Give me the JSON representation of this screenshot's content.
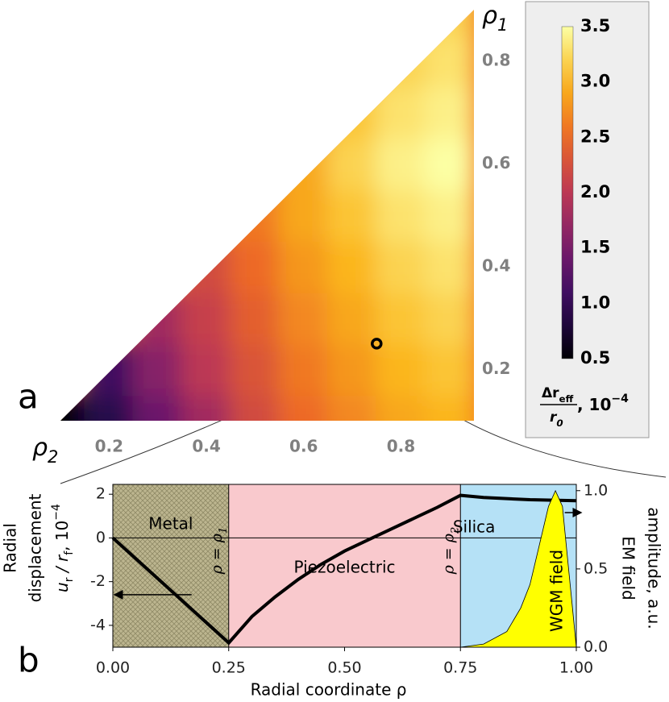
{
  "chart_data": [
    {
      "type": "contour",
      "panel_label": "a",
      "xlabel": {
        "text": "ρ",
        "sub": "2"
      },
      "ylabel": {
        "text": "ρ",
        "sub": "1"
      },
      "xlim": [
        0.1,
        0.95
      ],
      "ylim": [
        0.1,
        0.9
      ],
      "xticks": [
        0.2,
        0.4,
        0.6,
        0.8
      ],
      "yticks": [
        0.2,
        0.4,
        0.6,
        0.8
      ],
      "grid_x": [
        0.1,
        0.2,
        0.3,
        0.4,
        0.5,
        0.6,
        0.7,
        0.8,
        0.9
      ],
      "grid_y": [
        0.1,
        0.2,
        0.3,
        0.4,
        0.5,
        0.6,
        0.7,
        0.8,
        0.9
      ],
      "z": [
        [
          0.5,
          0.9,
          1.4,
          1.8,
          2.2,
          2.5,
          2.7,
          2.9,
          3.0
        ],
        [
          null,
          1.1,
          1.6,
          2.0,
          2.3,
          2.6,
          2.8,
          3.0,
          3.1
        ],
        [
          null,
          null,
          1.8,
          2.1,
          2.4,
          2.7,
          2.9,
          3.1,
          3.2
        ],
        [
          null,
          null,
          null,
          2.2,
          2.5,
          2.8,
          3.0,
          3.2,
          3.3
        ],
        [
          null,
          null,
          null,
          null,
          2.6,
          2.9,
          3.1,
          3.3,
          3.4
        ],
        [
          null,
          null,
          null,
          null,
          null,
          2.9,
          3.2,
          3.4,
          3.5
        ],
        [
          null,
          null,
          null,
          null,
          null,
          null,
          3.1,
          3.3,
          3.4
        ],
        [
          null,
          null,
          null,
          null,
          null,
          null,
          null,
          3.2,
          3.3
        ],
        [
          null,
          null,
          null,
          null,
          null,
          null,
          null,
          null,
          3.2
        ]
      ],
      "colormap": "inferno",
      "clim": [
        0.5,
        3.5
      ],
      "cticks": [
        0.5,
        {
          "value": 1,
          "label": "1.0"
        },
        1.5,
        {
          "value": 2,
          "label": "2.0"
        },
        2.5,
        {
          "value": 3,
          "label": "3.0"
        },
        3.5
      ],
      "colorbar_label": {
        "numerator": "Δr",
        "numerator_sub": "eff",
        "denominator": "r",
        "denominator_sub": "0",
        "suffix": ", 10",
        "suffix_sup": "−4"
      },
      "marker": {
        "x": 0.75,
        "y": 0.25
      }
    },
    {
      "type": "line",
      "panel_label": "b",
      "xlabel": "Radial coordinate ρ",
      "ylabel": {
        "line1": "Radial",
        "line2": "displacement",
        "u": "u",
        "u_sub": "r",
        "mid": " / r",
        "r_sub": "f",
        "suffix": ", 10",
        "suffix_sup": "−4"
      },
      "y2label": [
        "EM field",
        "amplitude, a.u."
      ],
      "xlim": [
        0,
        1
      ],
      "ylim": [
        -5,
        2.45
      ],
      "y2lim": [
        0,
        1.04
      ],
      "xticks": [
        {
          "value": 0,
          "label": "0.00"
        },
        {
          "value": 0.25,
          "label": "0.25"
        },
        {
          "value": 0.5,
          "label": "0.50"
        },
        {
          "value": 0.75,
          "label": "0.75"
        },
        {
          "value": 1,
          "label": "1.00"
        }
      ],
      "yticks": [
        -4,
        -2,
        0,
        2
      ],
      "y2ticks": [
        {
          "value": 0,
          "label": "0.0"
        },
        0.5,
        {
          "value": 1,
          "label": "1.0"
        }
      ],
      "regions": [
        {
          "label": "Metal",
          "x": [
            0,
            0.25
          ],
          "color": "#bcb58f"
        },
        {
          "label": "Piezoelectric",
          "x": [
            0.25,
            0.75
          ],
          "color": "#f9c9cd"
        },
        {
          "label": "Silica",
          "x": [
            0.75,
            1
          ],
          "color": "#b5e1f6"
        }
      ],
      "annotations": [
        {
          "text": "ρ = ρ",
          "sub": "1",
          "x": 0.25
        },
        {
          "text": "ρ = ρ",
          "sub": "2",
          "x": 0.75
        }
      ],
      "series": [
        {
          "color": "#000000",
          "x": [
            0,
            0.25,
            0.3,
            0.35,
            0.4,
            0.45,
            0.5,
            0.55,
            0.6,
            0.65,
            0.7,
            0.75,
            0.8,
            0.9,
            1.0
          ],
          "values": [
            0,
            -4.8,
            -3.6,
            -2.7,
            -1.9,
            -1.2,
            -0.6,
            -0.1,
            0.4,
            0.9,
            1.4,
            1.95,
            1.85,
            1.75,
            1.7
          ]
        },
        {
          "name": "WGM field",
          "axis": "y2",
          "color": "#ffff00",
          "x": [
            0.75,
            0.8,
            0.85,
            0.88,
            0.9,
            0.92,
            0.94,
            0.955,
            0.97,
            0.98,
            0.99,
            1.0
          ],
          "values": [
            0,
            0.02,
            0.1,
            0.25,
            0.4,
            0.65,
            0.9,
            1.0,
            0.9,
            0.6,
            0.3,
            0
          ]
        }
      ]
    }
  ]
}
